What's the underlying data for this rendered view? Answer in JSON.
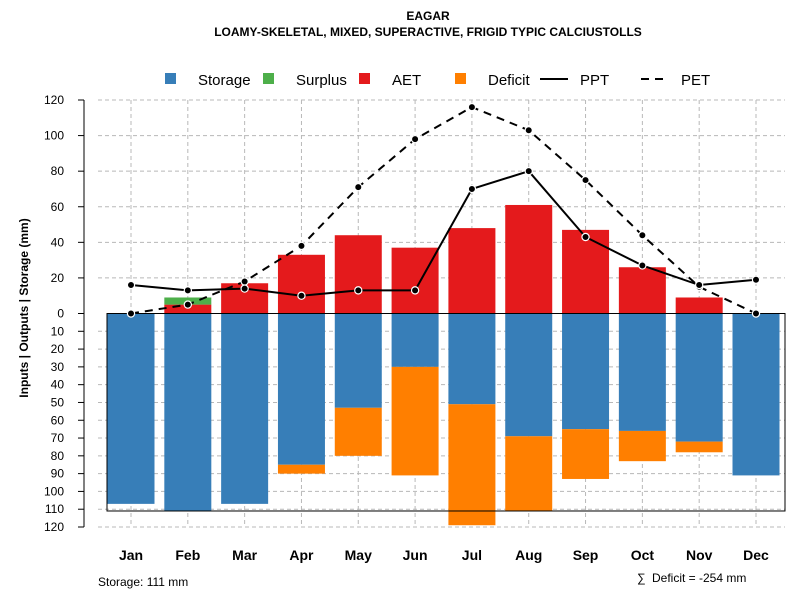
{
  "chart_data": {
    "type": "bar",
    "title": "EAGAR",
    "subtitle": "LOAMY-SKELETAL, MIXED, SUPERACTIVE, FRIGID TYPIC CALCIUSTOLLS",
    "ylabel": "Inputs | Outputs | Storage    (mm)",
    "categories": [
      "Jan",
      "Feb",
      "Mar",
      "Apr",
      "May",
      "Jun",
      "Jul",
      "Aug",
      "Sep",
      "Oct",
      "Nov",
      "Dec"
    ],
    "ylim_top": [
      0,
      120
    ],
    "ylim_bottom": [
      0,
      120
    ],
    "yticks_top": [
      "0",
      "20",
      "40",
      "60",
      "80",
      "100",
      "120"
    ],
    "yticks_bottom": [
      "10",
      "20",
      "30",
      "40",
      "50",
      "60",
      "70",
      "80",
      "90",
      "100",
      "110",
      "120"
    ],
    "legend": [
      {
        "label": "Storage",
        "kind": "box",
        "color": "#377EB8"
      },
      {
        "label": "Surplus",
        "kind": "box",
        "color": "#4DAF4A"
      },
      {
        "label": "AET",
        "kind": "box",
        "color": "#E41A1C"
      },
      {
        "label": "Deficit",
        "kind": "box",
        "color": "#FF7F00"
      },
      {
        "label": "PPT",
        "kind": "solid-line",
        "color": "#000000"
      },
      {
        "label": "PET",
        "kind": "dashed-line",
        "color": "#000000"
      }
    ],
    "series": [
      {
        "name": "AET",
        "color": "#E41A1C",
        "values": [
          0,
          5,
          17,
          33,
          44,
          37,
          48,
          61,
          47,
          26,
          9,
          0
        ]
      },
      {
        "name": "Surplus",
        "color": "#4DAF4A",
        "values": [
          0,
          4,
          0,
          0,
          0,
          0,
          0,
          0,
          0,
          0,
          0,
          0
        ]
      },
      {
        "name": "Storage",
        "color": "#377EB8",
        "values": [
          107,
          111,
          107,
          85,
          53,
          30,
          51,
          69,
          65,
          66,
          72,
          91
        ]
      },
      {
        "name": "Deficit",
        "color": "#FF7F00",
        "values": [
          0,
          0,
          0,
          5,
          27,
          61,
          68,
          42,
          28,
          17,
          6,
          0
        ]
      },
      {
        "name": "PPT",
        "color": "#000000",
        "values": [
          16,
          13,
          14,
          10,
          13,
          13,
          70,
          80,
          43,
          27,
          16,
          19
        ]
      },
      {
        "name": "PET",
        "color": "#000000",
        "values": [
          0,
          5,
          18,
          38,
          71,
          98,
          116,
          103,
          75,
          44,
          15,
          0
        ]
      }
    ],
    "grid": true,
    "storage_capacity": 111,
    "storage_note": "Storage: 111 mm",
    "deficit_note": "Deficit = -254 mm",
    "deficit_symbol": "∑"
  }
}
